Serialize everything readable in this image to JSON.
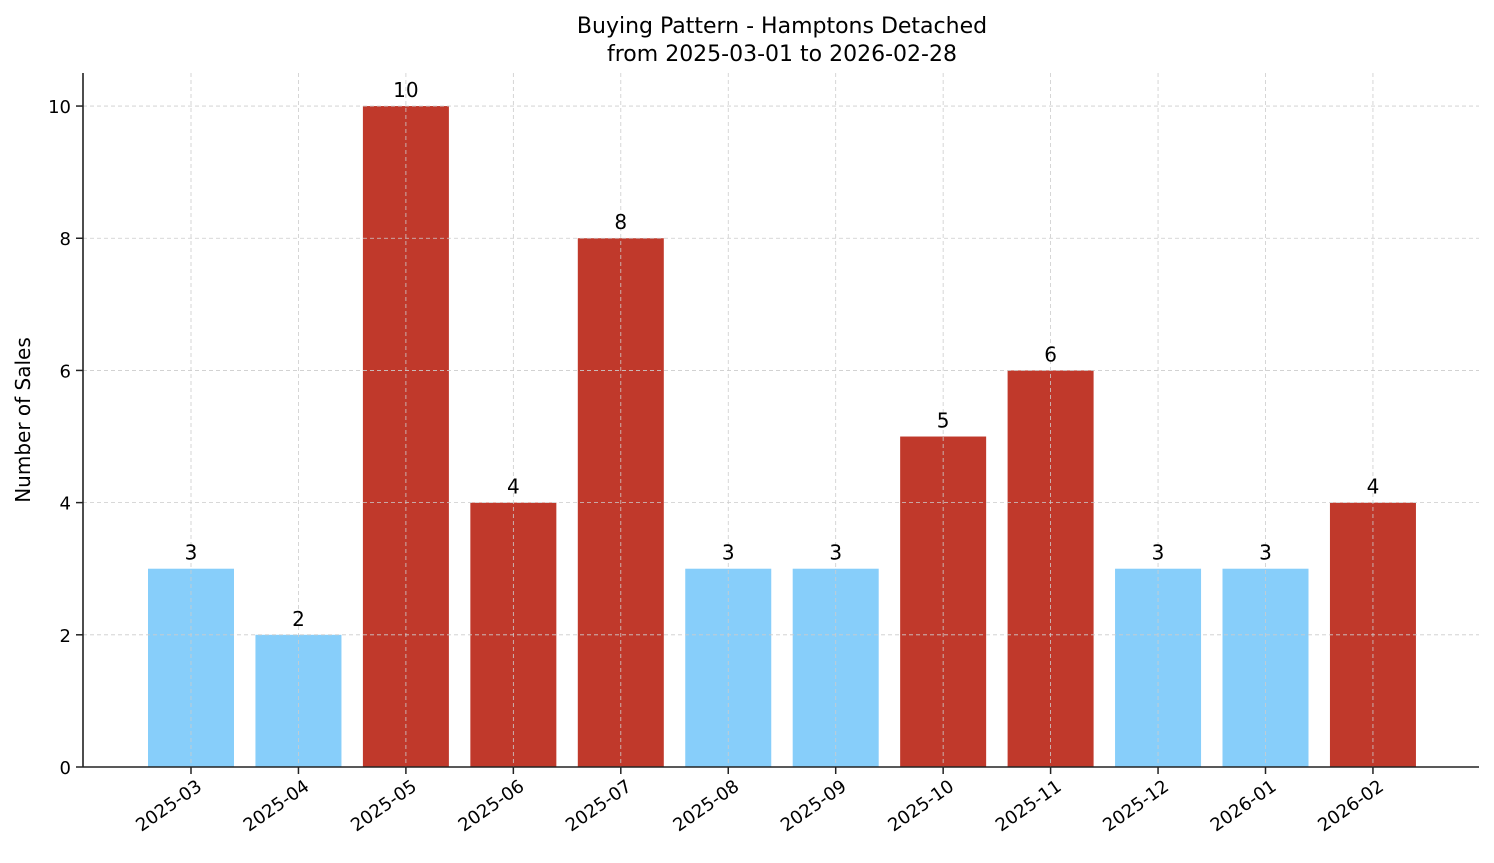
{
  "chart_data": {
    "type": "bar",
    "title": "Buying Pattern - Hamptons Detached",
    "subtitle": "from 2025-03-01 to 2026-02-28",
    "xlabel": "",
    "ylabel": "Number of Sales",
    "categories": [
      "2025-03",
      "2025-04",
      "2025-05",
      "2025-06",
      "2025-07",
      "2025-08",
      "2025-09",
      "2025-10",
      "2025-11",
      "2025-12",
      "2026-01",
      "2026-02"
    ],
    "values": [
      3,
      2,
      10,
      4,
      8,
      3,
      3,
      5,
      6,
      3,
      3,
      4
    ],
    "bar_colors": [
      "#87CEFA",
      "#87CEFA",
      "#C0392B",
      "#C0392B",
      "#C0392B",
      "#87CEFA",
      "#87CEFA",
      "#C0392B",
      "#C0392B",
      "#87CEFA",
      "#87CEFA",
      "#C0392B"
    ],
    "ylim": [
      0,
      10.5
    ],
    "yticks": [
      0,
      2,
      4,
      6,
      8,
      10
    ],
    "grid": true,
    "data_labels": true
  }
}
